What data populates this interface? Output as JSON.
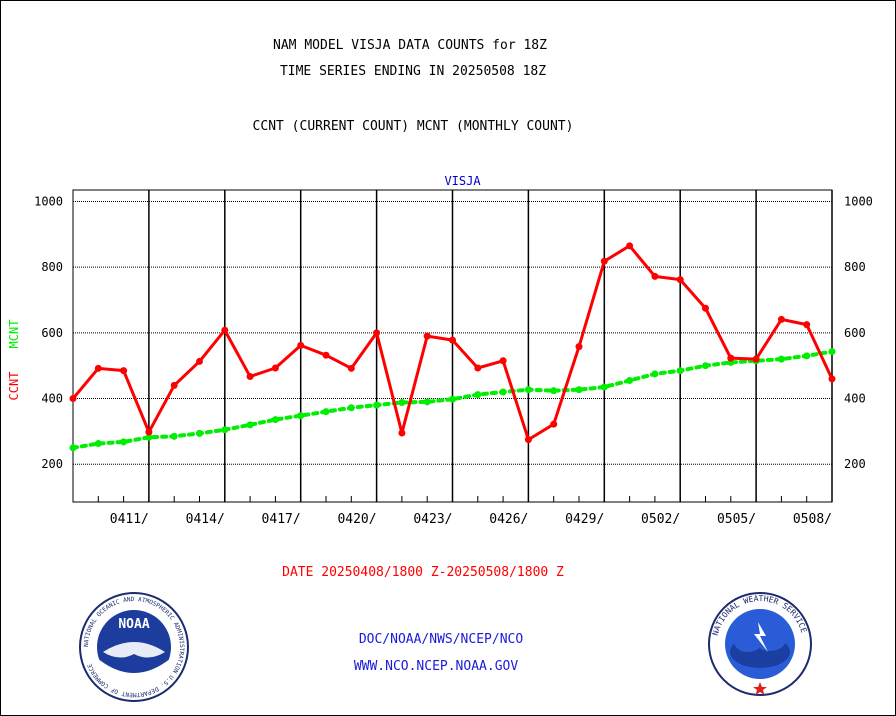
{
  "header": {
    "line1": "NAM MODEL VISJA DATA COUNTS for 18Z",
    "line2": "TIME SERIES ENDING IN 20250508 18Z",
    "line3": "CCNT (CURRENT COUNT) MCNT (MONTHLY COUNT)"
  },
  "footer": {
    "date_range": "DATE 20250408/1800 Z-20250508/1800 Z",
    "org_path": "DOC/NOAA/NWS/NCEP/NCO",
    "website": "WWW.NCO.NCEP.NOAA.GOV"
  },
  "logos": {
    "noaa": {
      "center_text": "NOAA",
      "ring_text": "NATIONAL OCEANIC AND ATMOSPHERIC ADMINISTRATION  U.S. DEPARTMENT OF COMMERCE"
    },
    "nws": {
      "ring_text": "NATIONAL WEATHER SERVICE"
    }
  },
  "colors": {
    "ccnt": "#ff0000",
    "mcnt": "#00ee00",
    "title_blue": "#0000cc",
    "grid": "#000000"
  },
  "chart_data": {
    "type": "line",
    "title": "VISJA",
    "ylabel_ccnt": "CCNT",
    "ylabel_mcnt": "MCNT",
    "ylim": [
      85,
      1035
    ],
    "yticks": [
      200,
      400,
      600,
      800,
      1000
    ],
    "x_start": "2025-04-08",
    "x_end": "2025-05-08",
    "xticks": [
      {
        "date": "2025-04-11",
        "label": "0411/"
      },
      {
        "date": "2025-04-14",
        "label": "0414/"
      },
      {
        "date": "2025-04-17",
        "label": "0417/"
      },
      {
        "date": "2025-04-20",
        "label": "0420/"
      },
      {
        "date": "2025-04-23",
        "label": "0423/"
      },
      {
        "date": "2025-04-26",
        "label": "0426/"
      },
      {
        "date": "2025-04-29",
        "label": "0429/"
      },
      {
        "date": "2025-05-02",
        "label": "0502/"
      },
      {
        "date": "2025-05-05",
        "label": "0505/"
      },
      {
        "date": "2025-05-08",
        "label": "0508/"
      }
    ],
    "grid": true,
    "series": [
      {
        "name": "CCNT",
        "color": "#ff0000",
        "style": "solid",
        "values": [
          400,
          492,
          485,
          298,
          440,
          513,
          608,
          467,
          493,
          562,
          532,
          492,
          600,
          295,
          590,
          578,
          493,
          515,
          275,
          322,
          558,
          818,
          865,
          772,
          762,
          675,
          523,
          520,
          641,
          625,
          460
        ]
      },
      {
        "name": "MCNT",
        "color": "#00ee00",
        "style": "dotted",
        "values": [
          250,
          263,
          268,
          282,
          285,
          294,
          305,
          320,
          336,
          348,
          360,
          372,
          380,
          388,
          390,
          398,
          412,
          420,
          427,
          424,
          427,
          435,
          455,
          475,
          485,
          500,
          510,
          515,
          520,
          530,
          543
        ]
      }
    ]
  }
}
